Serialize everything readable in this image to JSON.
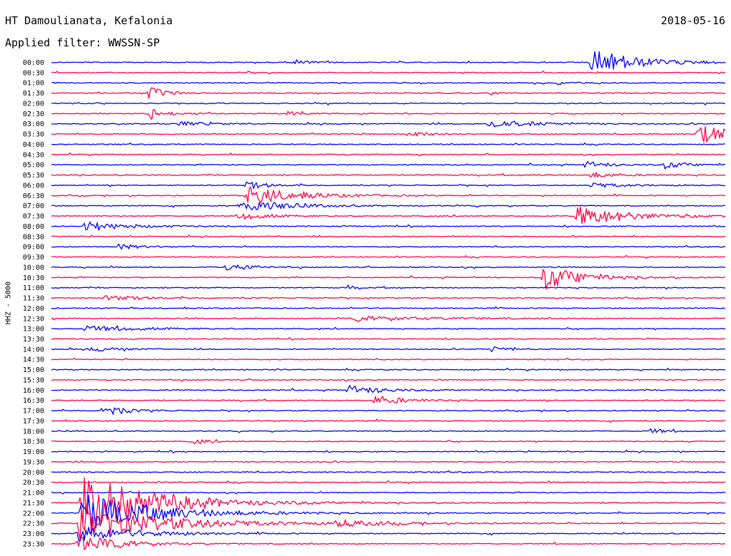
{
  "header": {
    "station": "HT Damoulianata, Kefalonia",
    "date": "2018-05-16",
    "filter": "Applied filter: WWSSN-SP",
    "channel": "HHZ - 5000"
  },
  "colors": {
    "trace_a": "#0000ff",
    "trace_b": "#ff0044",
    "text": "#000000",
    "background": "#ffffff"
  },
  "time_labels": [
    "00:00",
    "00:30",
    "01:00",
    "01:30",
    "02:00",
    "02:30",
    "03:00",
    "03:30",
    "04:00",
    "04:30",
    "05:00",
    "05:30",
    "06:00",
    "06:30",
    "07:00",
    "07:30",
    "08:00",
    "08:30",
    "09:00",
    "09:30",
    "10:00",
    "10:30",
    "11:00",
    "11:30",
    "12:00",
    "12:30",
    "13:00",
    "13:30",
    "14:00",
    "14:30",
    "15:00",
    "15:30",
    "16:00",
    "16:30",
    "17:00",
    "17:30",
    "18:00",
    "18:30",
    "19:00",
    "19:30",
    "20:00",
    "20:30",
    "21:00",
    "21:30",
    "22:00",
    "22:30",
    "23:00",
    "23:30"
  ],
  "events": [
    {
      "row": 0,
      "pos": 0.8,
      "amp": 2.6,
      "width": 0.06
    },
    {
      "row": 0,
      "pos": 0.36,
      "amp": 0.5,
      "width": 0.02
    },
    {
      "row": 2,
      "pos": 0.75,
      "amp": 0.3,
      "width": 0.02
    },
    {
      "row": 3,
      "pos": 0.145,
      "amp": 1.2,
      "width": 0.02
    },
    {
      "row": 3,
      "pos": 0.65,
      "amp": 0.4,
      "width": 0.01
    },
    {
      "row": 5,
      "pos": 0.145,
      "amp": 1.2,
      "width": 0.02
    },
    {
      "row": 5,
      "pos": 0.35,
      "amp": 0.4,
      "width": 0.02
    },
    {
      "row": 6,
      "pos": 0.65,
      "amp": 0.8,
      "width": 0.06
    },
    {
      "row": 6,
      "pos": 0.19,
      "amp": 0.4,
      "width": 0.04
    },
    {
      "row": 7,
      "pos": 0.53,
      "amp": 0.8,
      "width": 0.02
    },
    {
      "row": 7,
      "pos": 0.96,
      "amp": 1.6,
      "width": 0.07
    },
    {
      "row": 10,
      "pos": 0.79,
      "amp": 0.8,
      "width": 0.03
    },
    {
      "row": 10,
      "pos": 0.91,
      "amp": 0.7,
      "width": 0.03
    },
    {
      "row": 11,
      "pos": 0.8,
      "amp": 0.5,
      "width": 0.04
    },
    {
      "row": 12,
      "pos": 0.29,
      "amp": 0.7,
      "width": 0.03
    },
    {
      "row": 12,
      "pos": 0.8,
      "amp": 0.4,
      "width": 0.05
    },
    {
      "row": 13,
      "pos": 0.29,
      "amp": 1.6,
      "width": 0.07
    },
    {
      "row": 14,
      "pos": 0.28,
      "amp": 1.3,
      "width": 0.06
    },
    {
      "row": 15,
      "pos": 0.28,
      "amp": 0.7,
      "width": 0.04
    },
    {
      "row": 15,
      "pos": 0.78,
      "amp": 1.8,
      "width": 0.07
    },
    {
      "row": 16,
      "pos": 0.05,
      "amp": 0.8,
      "width": 0.06
    },
    {
      "row": 18,
      "pos": 0.1,
      "amp": 0.5,
      "width": 0.03
    },
    {
      "row": 20,
      "pos": 0.26,
      "amp": 0.7,
      "width": 0.03
    },
    {
      "row": 21,
      "pos": 0.73,
      "amp": 2.4,
      "width": 0.05
    },
    {
      "row": 22,
      "pos": 0.44,
      "amp": 0.4,
      "width": 0.01
    },
    {
      "row": 23,
      "pos": 0.08,
      "amp": 0.4,
      "width": 0.06
    },
    {
      "row": 25,
      "pos": 0.45,
      "amp": 0.4,
      "width": 0.12
    },
    {
      "row": 26,
      "pos": 0.05,
      "amp": 0.5,
      "width": 0.08
    },
    {
      "row": 28,
      "pos": 0.65,
      "amp": 0.5,
      "width": 0.03
    },
    {
      "row": 28,
      "pos": 0.06,
      "amp": 0.4,
      "width": 0.04
    },
    {
      "row": 32,
      "pos": 0.44,
      "amp": 1.1,
      "width": 0.04
    },
    {
      "row": 33,
      "pos": 0.48,
      "amp": 0.9,
      "width": 0.04
    },
    {
      "row": 34,
      "pos": 0.075,
      "amp": 1.2,
      "width": 0.03
    },
    {
      "row": 36,
      "pos": 0.89,
      "amp": 0.5,
      "width": 0.02
    },
    {
      "row": 37,
      "pos": 0.21,
      "amp": 0.5,
      "width": 0.02
    },
    {
      "row": 43,
      "pos": 0.045,
      "amp": 5.0,
      "width": 0.1
    },
    {
      "row": 44,
      "pos": 0.045,
      "amp": 3.5,
      "width": 0.1
    },
    {
      "row": 45,
      "pos": 0.04,
      "amp": 3.0,
      "width": 0.12
    },
    {
      "row": 45,
      "pos": 0.42,
      "amp": 0.6,
      "width": 0.06
    },
    {
      "row": 46,
      "pos": 0.04,
      "amp": 1.5,
      "width": 0.08
    },
    {
      "row": 47,
      "pos": 0.04,
      "amp": 1.5,
      "width": 0.06
    }
  ]
}
